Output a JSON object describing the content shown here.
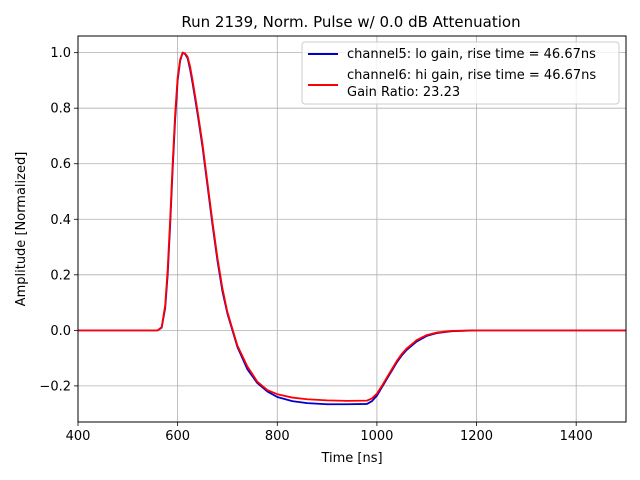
{
  "chart_data": {
    "type": "line",
    "title": "Run 2139, Norm. Pulse w/ 0.0 dB Attenuation",
    "xlabel": "Time [ns]",
    "ylabel": "Amplitude [Normalized]",
    "xlim": [
      400,
      1500
    ],
    "ylim": [
      -0.33,
      1.06
    ],
    "xticks": [
      400,
      600,
      800,
      1000,
      1200,
      1400
    ],
    "yticks": [
      -0.2,
      0.0,
      0.2,
      0.4,
      0.6,
      0.8,
      1.0
    ],
    "xtick_labels": [
      "400",
      "600",
      "800",
      "1000",
      "1200",
      "1400"
    ],
    "ytick_labels": [
      "−0.2",
      "0.0",
      "0.2",
      "0.4",
      "0.6",
      "0.8",
      "1.0"
    ],
    "grid": true,
    "legend_position": "top-right",
    "legend_extra_text": "Gain Ratio: 23.23",
    "series": [
      {
        "name": "channel5: lo gain, rise time = 46.67ns",
        "color": "#0000cc",
        "x": [
          400,
          560,
          568,
          575,
          580,
          585,
          590,
          595,
          600,
          605,
          610,
          615,
          620,
          625,
          630,
          640,
          650,
          660,
          670,
          680,
          690,
          700,
          720,
          740,
          760,
          780,
          800,
          830,
          860,
          900,
          940,
          980,
          990,
          1000,
          1010,
          1020,
          1030,
          1040,
          1050,
          1060,
          1080,
          1100,
          1120,
          1150,
          1200,
          1300,
          1400,
          1500
        ],
        "y": [
          0.0,
          0.0,
          0.01,
          0.08,
          0.2,
          0.38,
          0.58,
          0.76,
          0.9,
          0.97,
          1.0,
          0.995,
          0.98,
          0.94,
          0.89,
          0.78,
          0.66,
          0.52,
          0.38,
          0.25,
          0.14,
          0.06,
          -0.06,
          -0.14,
          -0.19,
          -0.22,
          -0.24,
          -0.255,
          -0.262,
          -0.266,
          -0.266,
          -0.265,
          -0.255,
          -0.235,
          -0.205,
          -0.175,
          -0.145,
          -0.115,
          -0.09,
          -0.07,
          -0.04,
          -0.02,
          -0.01,
          -0.003,
          0.0,
          0.0,
          0.0,
          0.0
        ]
      },
      {
        "name": "channel6: hi gain, rise time = 46.67ns",
        "color": "#ff0000",
        "x": [
          400,
          560,
          568,
          575,
          580,
          585,
          590,
          595,
          600,
          605,
          610,
          615,
          620,
          625,
          630,
          640,
          650,
          660,
          670,
          680,
          690,
          700,
          720,
          740,
          760,
          780,
          800,
          830,
          860,
          900,
          940,
          980,
          990,
          1000,
          1010,
          1020,
          1030,
          1040,
          1050,
          1060,
          1080,
          1100,
          1120,
          1150,
          1200,
          1300,
          1400,
          1500
        ],
        "y": [
          0.0,
          0.0,
          0.012,
          0.09,
          0.22,
          0.4,
          0.6,
          0.78,
          0.91,
          0.975,
          1.0,
          0.997,
          0.985,
          0.95,
          0.9,
          0.79,
          0.67,
          0.53,
          0.39,
          0.26,
          0.15,
          0.065,
          -0.055,
          -0.13,
          -0.185,
          -0.215,
          -0.23,
          -0.242,
          -0.248,
          -0.252,
          -0.254,
          -0.253,
          -0.245,
          -0.228,
          -0.2,
          -0.17,
          -0.14,
          -0.11,
          -0.085,
          -0.065,
          -0.035,
          -0.017,
          -0.008,
          -0.002,
          0.0,
          0.0,
          0.0,
          0.0
        ]
      }
    ]
  }
}
